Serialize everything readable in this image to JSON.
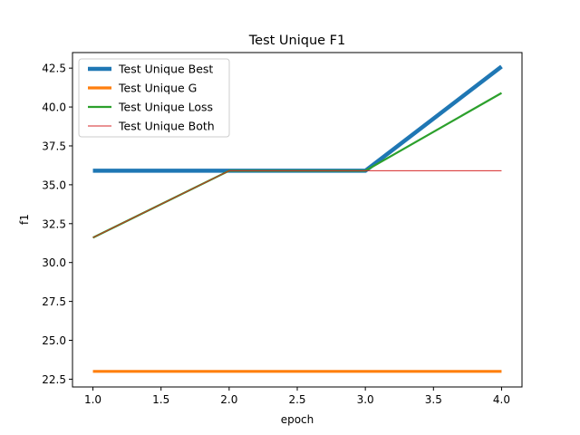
{
  "chart_data": {
    "type": "line",
    "title": "Test Unique F1",
    "xlabel": "epoch",
    "ylabel": "f1",
    "xlim": [
      0.85,
      4.15
    ],
    "ylim": [
      22.0,
      43.5
    ],
    "x_ticks": [
      "1.0",
      "1.5",
      "2.0",
      "2.5",
      "3.0",
      "3.5",
      "4.0"
    ],
    "y_ticks": [
      "22.5",
      "25.0",
      "27.5",
      "30.0",
      "32.5",
      "35.0",
      "37.5",
      "40.0",
      "42.5"
    ],
    "grid": false,
    "legend_position": "upper-left",
    "x": [
      1.0,
      2.0,
      3.0,
      4.0
    ],
    "series": [
      {
        "name": "Test Unique Best",
        "values": [
          35.9,
          35.9,
          35.9,
          42.6
        ],
        "color": "#1f77b4"
      },
      {
        "name": "Test Unique G",
        "values": [
          23.0,
          23.0,
          23.0,
          23.0
        ],
        "color": "#ff7f0e"
      },
      {
        "name": "Test Unique Loss",
        "values": [
          31.6,
          35.9,
          35.9,
          40.9
        ],
        "color": "#2ca02c"
      },
      {
        "name": "Test Unique Both",
        "values": [
          31.6,
          35.9,
          35.9,
          35.9
        ],
        "color": "#d62728"
      }
    ]
  }
}
